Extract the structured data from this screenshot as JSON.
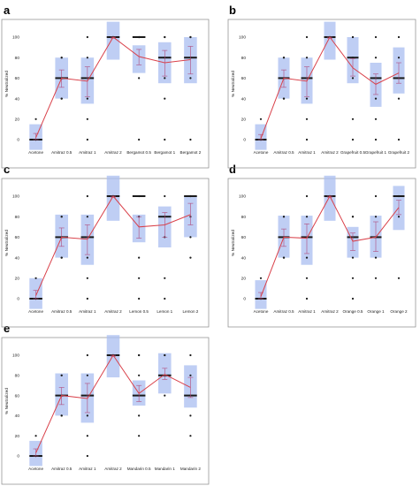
{
  "chart_data": [
    {
      "type": "box",
      "panel": "a",
      "ylabel": "% Neutralized",
      "ylim": [
        0,
        100
      ],
      "yticks": [
        "0",
        "20",
        "40",
        "60",
        "80",
        "100"
      ],
      "categories": [
        "Acetone",
        "Amitraz 0.5",
        "Amitraz 1",
        "Amitraz 2",
        "Bergamot 0.5",
        "Bergamot 1",
        "Bergamot 2"
      ],
      "box_low": [
        -10,
        40,
        35,
        78,
        65,
        55,
        55
      ],
      "box_high": [
        15,
        80,
        80,
        115,
        92,
        95,
        100
      ],
      "mean": [
        2,
        60,
        57,
        100,
        81,
        75,
        78
      ],
      "err_low": [
        0,
        51,
        42,
        99,
        73,
        62,
        64
      ],
      "err_high": [
        6,
        68,
        71,
        100,
        88,
        87,
        91
      ],
      "medians": [
        0,
        60,
        60,
        100,
        100,
        80,
        80
      ],
      "points": [
        [
          0,
          20,
          0,
          0,
          0,
          0
        ],
        [
          40,
          40,
          60,
          60,
          80,
          80
        ],
        [
          0,
          20,
          40,
          80,
          100
        ],
        [
          100,
          100,
          100,
          100
        ],
        [
          0,
          60,
          100,
          100,
          100,
          100
        ],
        [
          0,
          40,
          60,
          80,
          100,
          100
        ],
        [
          0,
          60,
          80,
          100,
          100,
          100
        ]
      ]
    },
    {
      "type": "box",
      "panel": "b",
      "ylabel": "% Neutralized",
      "ylim": [
        0,
        100
      ],
      "yticks": [
        "0",
        "20",
        "40",
        "60",
        "80",
        "100"
      ],
      "categories": [
        "Acetone",
        "Amitraz 0.5",
        "Amitraz 1",
        "Amitraz 2",
        "Grapefruit 0.5",
        "Grapefruit 1",
        "Grapefruit 2"
      ],
      "box_low": [
        -10,
        40,
        35,
        78,
        55,
        32,
        45
      ],
      "box_high": [
        15,
        80,
        80,
        115,
        100,
        75,
        90
      ],
      "mean": [
        1,
        60,
        57,
        100,
        70,
        54,
        65
      ],
      "err_low": [
        0,
        51,
        42,
        99,
        62,
        44,
        55
      ],
      "err_high": [
        5,
        68,
        71,
        100,
        79,
        64,
        75
      ],
      "medians": [
        0,
        60,
        60,
        100,
        80,
        60,
        60
      ],
      "points": [
        [
          0,
          20,
          0,
          0,
          0,
          0
        ],
        [
          40,
          40,
          60,
          60,
          80,
          80
        ],
        [
          0,
          20,
          40,
          80,
          100
        ],
        [
          100,
          100,
          100,
          100
        ],
        [
          0,
          20,
          60,
          80,
          100,
          100
        ],
        [
          0,
          20,
          40,
          60,
          80,
          100
        ],
        [
          0,
          40,
          60,
          80,
          100
        ]
      ]
    },
    {
      "type": "box",
      "panel": "c",
      "ylabel": "% Neutralized",
      "ylim": [
        0,
        100
      ],
      "yticks": [
        "0",
        "20",
        "40",
        "60",
        "80",
        "100"
      ],
      "categories": [
        "Acetone",
        "Amitraz 0.5",
        "Amitraz 1",
        "Amitraz 2",
        "Lemon 0.5",
        "Lemon 1",
        "Lemon 2"
      ],
      "box_low": [
        -10,
        40,
        33,
        76,
        55,
        50,
        60
      ],
      "box_high": [
        20,
        82,
        82,
        120,
        82,
        90,
        100
      ],
      "mean": [
        3,
        60,
        58,
        100,
        70,
        72,
        82
      ],
      "err_low": [
        0,
        51,
        43,
        99,
        59,
        60,
        72
      ],
      "err_high": [
        8,
        69,
        72,
        100,
        80,
        84,
        93
      ],
      "medians": [
        0,
        60,
        60,
        100,
        100,
        80,
        100
      ],
      "points": [
        [
          0,
          20,
          0,
          0,
          0
        ],
        [
          40,
          40,
          60,
          60,
          80,
          80
        ],
        [
          0,
          20,
          40,
          80,
          100
        ],
        [
          100,
          100,
          100,
          100
        ],
        [
          0,
          20,
          40,
          80,
          100,
          100
        ],
        [
          0,
          20,
          60,
          80,
          100
        ],
        [
          40,
          60,
          80,
          100,
          100
        ]
      ]
    },
    {
      "type": "box",
      "panel": "d",
      "ylabel": "% Neutralized",
      "ylim": [
        0,
        100
      ],
      "yticks": [
        "0",
        "20",
        "40",
        "60",
        "80",
        "100"
      ],
      "categories": [
        "Acetone",
        "Amitraz 0.5",
        "Amitraz 1",
        "Amitraz 2",
        "Orange 0.5",
        "Orange 1",
        "Orange 2"
      ],
      "box_low": [
        -10,
        40,
        33,
        76,
        40,
        40,
        67
      ],
      "box_high": [
        18,
        81,
        81,
        120,
        70,
        81,
        110
      ],
      "mean": [
        2,
        60,
        59,
        100,
        56,
        60,
        89
      ],
      "err_low": [
        0,
        51,
        44,
        99,
        47,
        46,
        82
      ],
      "err_high": [
        6,
        68,
        73,
        100,
        64,
        75,
        96
      ],
      "medians": [
        0,
        60,
        60,
        100,
        60,
        60,
        100
      ],
      "points": [
        [
          0,
          20,
          0,
          0,
          0
        ],
        [
          40,
          40,
          60,
          60,
          80,
          80
        ],
        [
          0,
          20,
          40,
          80,
          100
        ],
        [
          100,
          100,
          100,
          100
        ],
        [
          0,
          20,
          40,
          60,
          80,
          80
        ],
        [
          20,
          40,
          60,
          80,
          100
        ],
        [
          20,
          80,
          100,
          100
        ]
      ]
    },
    {
      "type": "box",
      "panel": "e",
      "ylabel": "% Neutralized",
      "ylim": [
        0,
        100
      ],
      "yticks": [
        "0",
        "20",
        "40",
        "60",
        "80",
        "100"
      ],
      "categories": [
        "Acetone",
        "Amitraz 0.5",
        "Amitraz 1",
        "Amitraz 2",
        "Mandarin 0.5",
        "Mandarin 1",
        "Mandarin 2"
      ],
      "box_low": [
        -10,
        40,
        33,
        78,
        50,
        62,
        48
      ],
      "box_high": [
        15,
        82,
        82,
        120,
        75,
        102,
        90
      ],
      "mean": [
        3,
        60,
        57,
        100,
        62,
        81,
        68
      ],
      "err_low": [
        0,
        51,
        43,
        99,
        54,
        76,
        58
      ],
      "err_high": [
        7,
        68,
        72,
        100,
        70,
        87,
        78
      ],
      "medians": [
        0,
        60,
        60,
        100,
        60,
        80,
        60
      ],
      "points": [
        [
          0,
          20,
          0,
          0,
          0
        ],
        [
          40,
          40,
          60,
          60,
          80,
          80
        ],
        [
          0,
          20,
          40,
          80,
          100
        ],
        [
          100,
          100,
          100,
          100
        ],
        [
          20,
          40,
          60,
          80,
          100,
          100
        ],
        [
          60,
          80,
          80,
          100,
          100
        ],
        [
          20,
          40,
          60,
          80,
          100
        ]
      ]
    }
  ],
  "colors": {
    "box": "#a9bdf0",
    "mean_line": "#d9414a",
    "error_bar": "#b04a7a",
    "median": "#1a1a1a",
    "point": "#1a1a1a",
    "axis": "#888888"
  }
}
